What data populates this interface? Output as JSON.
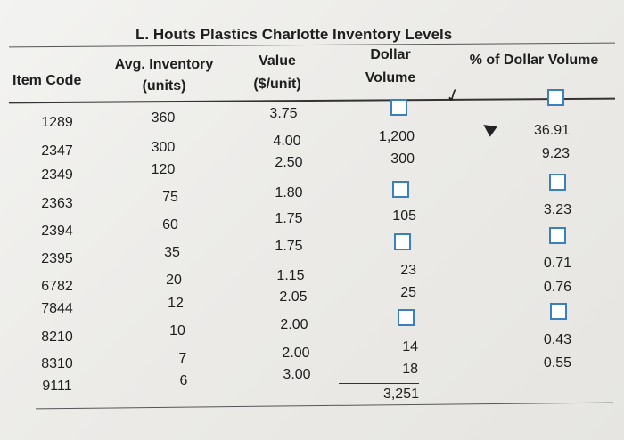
{
  "title": "L. Houts Plastics Charlotte Inventory Levels",
  "headers": {
    "item_code": "Item Code",
    "avg_inventory_1": "Avg. Inventory",
    "avg_inventory_2": "(units)",
    "value_1": "Value",
    "value_2": "($/unit)",
    "dollar_1": "Dollar",
    "dollar_2": "Volume",
    "pct": "% of Dollar Volume"
  },
  "rows": [
    {
      "code": "1289",
      "avg": "360",
      "value": "3.75"
    },
    {
      "code": "2347",
      "avg": "300",
      "value": "4.00",
      "dollar": "1,200",
      "pct": "36.91"
    },
    {
      "code": "2349",
      "avg": "120",
      "value": "2.50",
      "dollar": "300",
      "pct": "9.23"
    },
    {
      "code": "2363",
      "avg": "75",
      "value": "1.80"
    },
    {
      "code": "2394",
      "avg": "60",
      "value": "1.75",
      "dollar": "105",
      "pct": "3.23"
    },
    {
      "code": "2395",
      "avg": "35",
      "value": "1.75"
    },
    {
      "code": "6782",
      "avg": "20",
      "value": "1.15",
      "dollar": "23",
      "pct": "0.71"
    },
    {
      "code": "7844",
      "avg": "12",
      "value": "2.05",
      "dollar": "25",
      "pct": "0.76"
    },
    {
      "code": "8210",
      "avg": "10",
      "value": "2.00"
    },
    {
      "code": "8310",
      "avg": "7",
      "value": "2.00",
      "dollar": "14",
      "pct": "0.43"
    },
    {
      "code": "9111",
      "avg": "6",
      "value": "3.00",
      "dollar": "18",
      "pct": "0.55"
    }
  ],
  "total": "3,251",
  "colors": {
    "input_box_border": "#3a7fc0",
    "text": "#1e1e1e"
  }
}
